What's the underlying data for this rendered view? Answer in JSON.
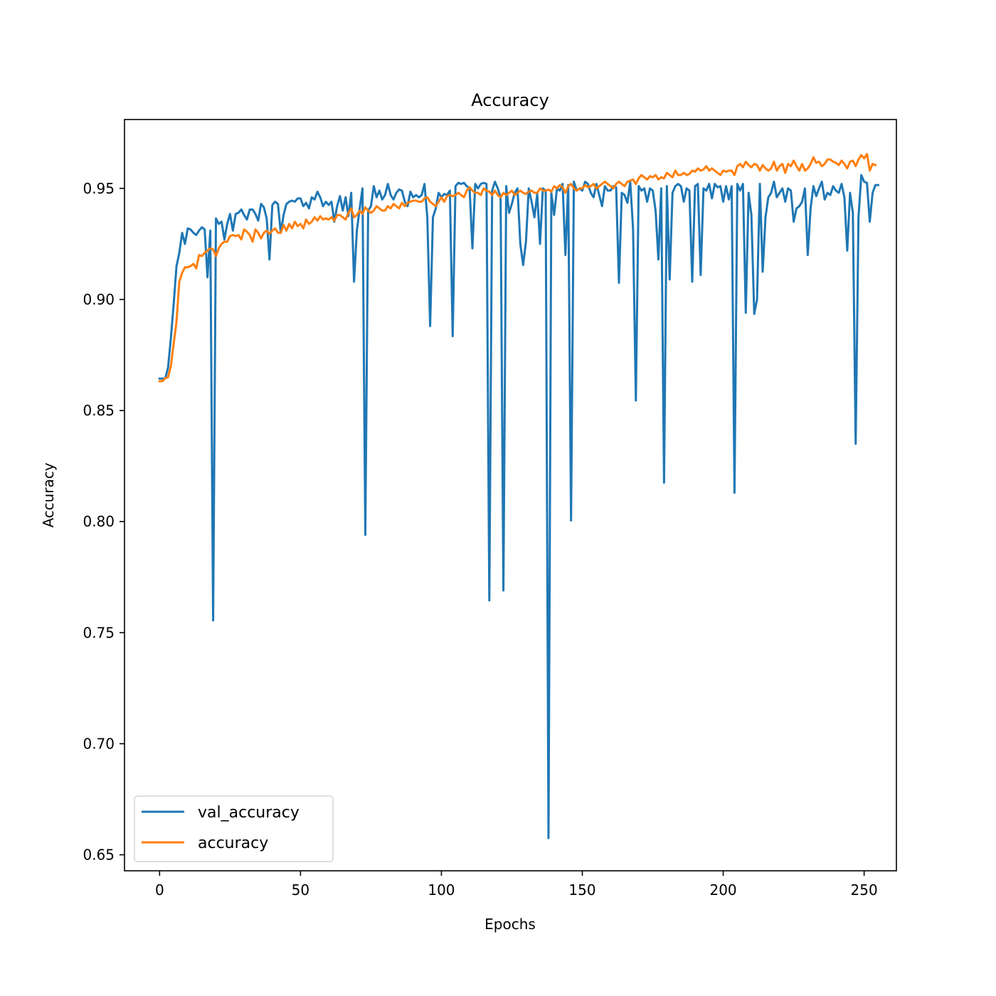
{
  "chart_data": {
    "type": "line",
    "title": "Accuracy",
    "xlabel": "Epochs",
    "ylabel": "Accuracy",
    "xlim": [
      -12.45,
      261.45
    ],
    "ylim": [
      0.6428,
      0.981
    ],
    "xticks": [
      0,
      50,
      100,
      150,
      200,
      250
    ],
    "yticks": [
      0.65,
      0.7,
      0.75,
      0.8,
      0.85,
      0.9,
      0.95
    ],
    "ytick_labels": [
      "0.65",
      "0.70",
      "0.75",
      "0.80",
      "0.85",
      "0.90",
      "0.95"
    ],
    "grid": false,
    "legend_position": "lower-left",
    "series": [
      {
        "name": "val_accuracy",
        "color": "#1f77b4",
        "values": [
          0.8644,
          0.8644,
          0.8644,
          0.8693,
          0.8825,
          0.8979,
          0.915,
          0.921,
          0.93,
          0.925,
          0.932,
          0.9315,
          0.93,
          0.929,
          0.931,
          0.9325,
          0.9315,
          0.91,
          0.931,
          0.7555,
          0.9365,
          0.934,
          0.935,
          0.927,
          0.934,
          0.9385,
          0.931,
          0.9385,
          0.939,
          0.9405,
          0.938,
          0.936,
          0.9405,
          0.9405,
          0.9385,
          0.9355,
          0.943,
          0.9415,
          0.9365,
          0.918,
          0.9425,
          0.944,
          0.943,
          0.93,
          0.938,
          0.943,
          0.944,
          0.9445,
          0.944,
          0.9455,
          0.9455,
          0.942,
          0.9435,
          0.941,
          0.946,
          0.945,
          0.9485,
          0.946,
          0.942,
          0.944,
          0.9425,
          0.944,
          0.935,
          0.942,
          0.9465,
          0.94,
          0.946,
          0.9375,
          0.948,
          0.908,
          0.931,
          0.941,
          0.95,
          0.794,
          0.94,
          0.942,
          0.951,
          0.946,
          0.949,
          0.945,
          0.947,
          0.952,
          0.947,
          0.945,
          0.948,
          0.9495,
          0.949,
          0.944,
          0.942,
          0.9485,
          0.946,
          0.947,
          0.946,
          0.947,
          0.952,
          0.937,
          0.888,
          0.937,
          0.941,
          0.948,
          0.946,
          0.9475,
          0.947,
          0.949,
          0.8835,
          0.951,
          0.9525,
          0.952,
          0.9525,
          0.951,
          0.95,
          0.923,
          0.952,
          0.95,
          0.952,
          0.9525,
          0.952,
          0.7645,
          0.949,
          0.953,
          0.95,
          0.946,
          0.769,
          0.951,
          0.939,
          0.943,
          0.948,
          0.95,
          0.925,
          0.9155,
          0.926,
          0.95,
          0.944,
          0.937,
          0.9475,
          0.925,
          0.95,
          0.949,
          0.6575,
          0.948,
          0.938,
          0.95,
          0.949,
          0.952,
          0.92,
          0.9515,
          0.8005,
          0.953,
          0.949,
          0.95,
          0.949,
          0.953,
          0.952,
          0.948,
          0.946,
          0.952,
          0.947,
          0.942,
          0.951,
          0.949,
          0.949,
          0.951,
          0.9505,
          0.9075,
          0.948,
          0.947,
          0.9435,
          0.953,
          0.932,
          0.8545,
          0.951,
          0.949,
          0.95,
          0.944,
          0.95,
          0.949,
          0.94,
          0.918,
          0.95,
          0.8175,
          0.951,
          0.909,
          0.948,
          0.951,
          0.952,
          0.951,
          0.944,
          0.95,
          0.949,
          0.908,
          0.951,
          0.952,
          0.911,
          0.95,
          0.949,
          0.952,
          0.9455,
          0.952,
          0.9505,
          0.951,
          0.944,
          0.951,
          0.945,
          0.951,
          0.813,
          0.952,
          0.949,
          0.952,
          0.894,
          0.948,
          0.938,
          0.8935,
          0.9,
          0.952,
          0.9125,
          0.937,
          0.946,
          0.948,
          0.953,
          0.946,
          0.948,
          0.95,
          0.944,
          0.95,
          0.949,
          0.935,
          0.941,
          0.942,
          0.944,
          0.95,
          0.92,
          0.941,
          0.951,
          0.9465,
          0.95,
          0.953,
          0.945,
          0.948,
          0.947,
          0.951,
          0.949,
          0.948,
          0.952,
          0.946,
          0.922,
          0.948,
          0.939,
          0.835,
          0.937,
          0.956,
          0.953,
          0.9525,
          0.935,
          0.948,
          0.9515,
          0.9515
        ]
      },
      {
        "name": "accuracy",
        "color": "#ff7f0e",
        "values": [
          0.8632,
          0.8632,
          0.8645,
          0.865,
          0.87,
          0.88,
          0.89,
          0.908,
          0.912,
          0.9145,
          0.9145,
          0.915,
          0.916,
          0.914,
          0.92,
          0.9195,
          0.921,
          0.922,
          0.923,
          0.9225,
          0.9195,
          0.923,
          0.925,
          0.926,
          0.926,
          0.9285,
          0.929,
          0.9285,
          0.929,
          0.927,
          0.9315,
          0.9305,
          0.929,
          0.926,
          0.9315,
          0.93,
          0.9275,
          0.93,
          0.931,
          0.9295,
          0.931,
          0.932,
          0.93,
          0.93,
          0.9335,
          0.931,
          0.934,
          0.932,
          0.935,
          0.933,
          0.934,
          0.932,
          0.936,
          0.934,
          0.935,
          0.937,
          0.9355,
          0.9375,
          0.936,
          0.9365,
          0.936,
          0.937,
          0.9355,
          0.938,
          0.938,
          0.937,
          0.936,
          0.939,
          0.941,
          0.937,
          0.938,
          0.94,
          0.9385,
          0.9415,
          0.94,
          0.939,
          0.94,
          0.942,
          0.941,
          0.94,
          0.94,
          0.942,
          0.941,
          0.943,
          0.942,
          0.941,
          0.9435,
          0.942,
          0.9435,
          0.944,
          0.9445,
          0.9445,
          0.944,
          0.944,
          0.9455,
          0.946,
          0.944,
          0.943,
          0.942,
          0.944,
          0.946,
          0.944,
          0.9465,
          0.947,
          0.9465,
          0.947,
          0.948,
          0.947,
          0.946,
          0.949,
          0.9505,
          0.949,
          0.948,
          0.948,
          0.947,
          0.95,
          0.949,
          0.9485,
          0.947,
          0.949,
          0.947,
          0.946,
          0.948,
          0.947,
          0.948,
          0.949,
          0.947,
          0.948,
          0.949,
          0.948,
          0.9475,
          0.9485,
          0.949,
          0.948,
          0.948,
          0.95,
          0.949,
          0.949,
          0.9495,
          0.9485,
          0.951,
          0.95,
          0.9515,
          0.9505,
          0.948,
          0.951,
          0.952,
          0.95,
          0.949,
          0.95,
          0.95,
          0.9515,
          0.9505,
          0.951,
          0.952,
          0.95,
          0.951,
          0.952,
          0.953,
          0.952,
          0.951,
          0.95,
          0.952,
          0.953,
          0.952,
          0.951,
          0.953,
          0.9535,
          0.954,
          0.952,
          0.9545,
          0.956,
          0.955,
          0.954,
          0.9555,
          0.955,
          0.956,
          0.954,
          0.955,
          0.9545,
          0.957,
          0.956,
          0.955,
          0.958,
          0.956,
          0.956,
          0.957,
          0.956,
          0.9565,
          0.958,
          0.9575,
          0.959,
          0.958,
          0.9585,
          0.96,
          0.958,
          0.959,
          0.958,
          0.957,
          0.956,
          0.958,
          0.9575,
          0.958,
          0.958,
          0.956,
          0.96,
          0.961,
          0.9595,
          0.962,
          0.9605,
          0.9595,
          0.961,
          0.9605,
          0.958,
          0.9605,
          0.959,
          0.958,
          0.959,
          0.962,
          0.958,
          0.96,
          0.961,
          0.957,
          0.961,
          0.96,
          0.9625,
          0.96,
          0.958,
          0.961,
          0.958,
          0.959,
          0.961,
          0.964,
          0.9615,
          0.962,
          0.96,
          0.961,
          0.963,
          0.963,
          0.962,
          0.9615,
          0.9605,
          0.9625,
          0.961,
          0.959,
          0.962,
          0.9625,
          0.96,
          0.963,
          0.965,
          0.9635,
          0.9655,
          0.958,
          0.961,
          0.9605
        ]
      }
    ]
  }
}
